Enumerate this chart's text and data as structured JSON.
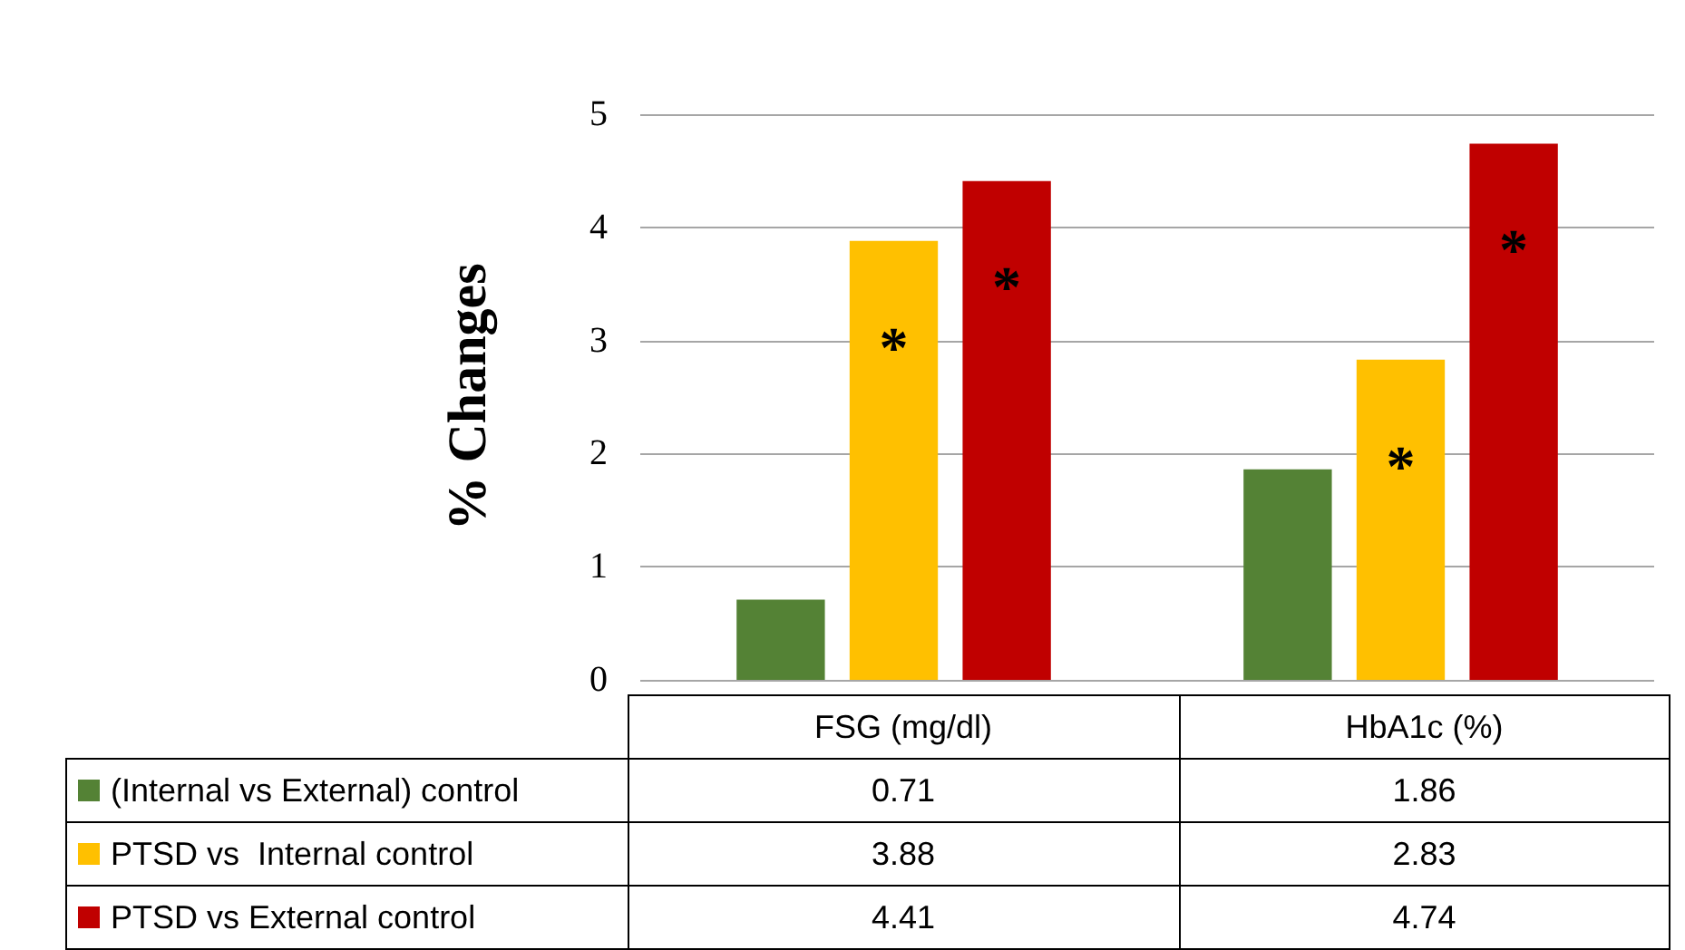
{
  "chart_data": {
    "type": "bar",
    "ylabel": "% Changes",
    "categories": [
      "FSG (mg/dl)",
      "HbA1c (%)"
    ],
    "series": [
      {
        "name": "(Internal vs External) control",
        "color": "#548235",
        "values": [
          0.71,
          1.86
        ]
      },
      {
        "name": "PTSD vs  Internal control",
        "color": "#ffc000",
        "values": [
          3.88,
          2.83
        ]
      },
      {
        "name": "PTSD vs External control",
        "color": "#c00000",
        "values": [
          4.41,
          4.74
        ]
      }
    ],
    "ylim": [
      0,
      5
    ],
    "yticks": [
      0,
      1,
      2,
      3,
      4,
      5
    ],
    "grid": "y",
    "legend": "bottom",
    "data_labels": true,
    "annotations": [
      "*",
      "*",
      "*",
      "*"
    ]
  }
}
